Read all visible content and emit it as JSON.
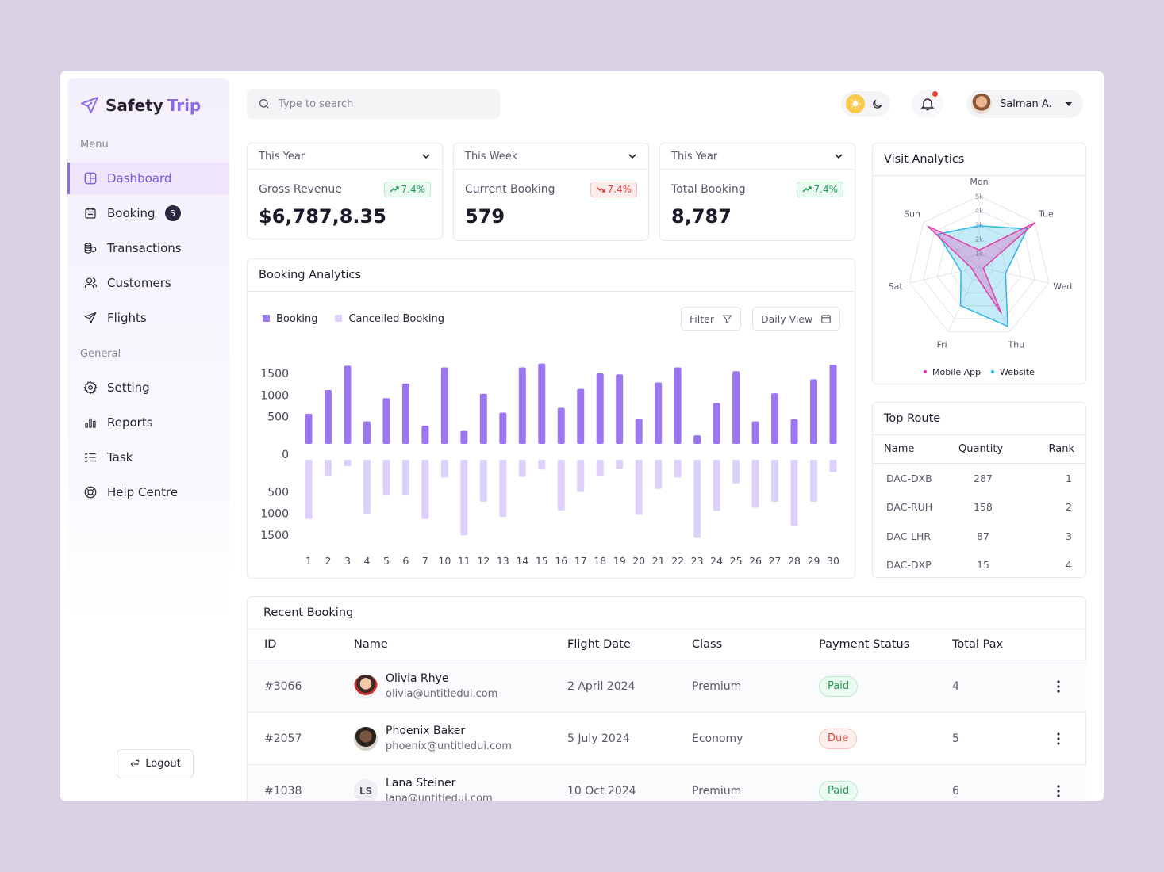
{
  "brand": {
    "name_part1": "Safety",
    "name_part2": "Trip"
  },
  "sidebar": {
    "menu_label": "Menu",
    "general_label": "General",
    "menu_items": [
      {
        "label": "Dashboard",
        "icon": "dashboard-icon",
        "active": true
      },
      {
        "label": "Booking",
        "icon": "calendar-icon",
        "badge": "5"
      },
      {
        "label": "Transactions",
        "icon": "coins-icon"
      },
      {
        "label": "Customers",
        "icon": "users-icon"
      },
      {
        "label": "Flights",
        "icon": "plane-icon"
      }
    ],
    "general_items": [
      {
        "label": "Setting",
        "icon": "gear-icon"
      },
      {
        "label": "Reports",
        "icon": "bar-chart-icon"
      },
      {
        "label": "Task",
        "icon": "task-list-icon"
      },
      {
        "label": "Help Centre",
        "icon": "lifebuoy-icon"
      }
    ],
    "logout_label": "Logout"
  },
  "topbar": {
    "search_placeholder": "Type to search",
    "user_name": "Salman A."
  },
  "stats": [
    {
      "period": "This Year",
      "label": "Gross Revenue",
      "value": "$6,787,8.35",
      "change": "7.4%",
      "trend": "up"
    },
    {
      "period": "This Week",
      "label": "Current Booking",
      "value": "579",
      "change": "7.4%",
      "trend": "down"
    },
    {
      "period": "This Year",
      "label": "Total Booking",
      "value": "8,787",
      "change": "7.4%",
      "trend": "up"
    }
  ],
  "booking_analytics": {
    "title": "Booking Analytics",
    "legend_booking": "Booking",
    "legend_cancelled": "Cancelled Booking",
    "filter_label": "Filter",
    "view_label": "Daily View",
    "colors": {
      "booking": "#9b76ee",
      "cancelled": "#ddd0fa"
    }
  },
  "chart_data": [
    {
      "type": "bar",
      "title": "Booking Analytics",
      "categories": [
        "1",
        "2",
        "3",
        "4",
        "5",
        "6",
        "7",
        "10",
        "11",
        "12",
        "13",
        "14",
        "15",
        "16",
        "17",
        "18",
        "19",
        "20",
        "21",
        "22",
        "23",
        "24",
        "25",
        "26",
        "27",
        "28",
        "29",
        "30"
      ],
      "series": [
        {
          "name": "Booking",
          "values": [
            560,
            1000,
            1450,
            420,
            850,
            1120,
            340,
            1420,
            240,
            930,
            580,
            1420,
            1490,
            670,
            1020,
            1310,
            1290,
            470,
            1140,
            1420,
            160,
            760,
            1350,
            420,
            940,
            460,
            1200,
            1470
          ]
        },
        {
          "name": "Cancelled Booking",
          "values": [
            1100,
            300,
            120,
            1000,
            650,
            650,
            1100,
            330,
            1400,
            780,
            1060,
            320,
            180,
            940,
            600,
            300,
            170,
            1020,
            540,
            330,
            1450,
            950,
            440,
            890,
            780,
            1230,
            780,
            230
          ]
        }
      ],
      "yticks": [
        "1500",
        "1000",
        "500",
        "0",
        "500",
        "1000",
        "1500"
      ],
      "ylim": [
        -1500,
        1500
      ]
    },
    {
      "type": "radar",
      "title": "Visit Analytics",
      "axes": [
        "Mon",
        "Tue",
        "Wed",
        "Thu",
        "Fri",
        "Sat",
        "Sun"
      ],
      "rings": [
        "5k",
        "4k",
        "3k",
        "2k",
        "1k"
      ],
      "max": 5000,
      "series": [
        {
          "name": "Mobile App",
          "color": "#e23fae",
          "values": [
            1200,
            5000,
            300,
            3600,
            600,
            500,
            4600
          ]
        },
        {
          "name": "Website",
          "color": "#2fb6e8",
          "values": [
            2900,
            4300,
            1900,
            4600,
            3000,
            1300,
            3700
          ]
        }
      ]
    }
  ],
  "visit_analytics": {
    "title": "Visit Analytics",
    "legend": [
      "Mobile App",
      "Website"
    ]
  },
  "top_route": {
    "title": "Top Route",
    "columns": [
      "Name",
      "Quantity",
      "Rank"
    ],
    "rows": [
      {
        "name": "DAC-DXB",
        "qty": "287",
        "rank": "1"
      },
      {
        "name": "DAC-RUH",
        "qty": "158",
        "rank": "2"
      },
      {
        "name": "DAC-LHR",
        "qty": "87",
        "rank": "3"
      },
      {
        "name": "DAC-DXP",
        "qty": "15",
        "rank": "4"
      }
    ]
  },
  "recent_booking": {
    "title": "Recent Booking",
    "columns": {
      "id": "ID",
      "name": "Name",
      "date": "Flight Date",
      "class": "Class",
      "status": "Payment Status",
      "pax": "Total Pax"
    },
    "rows": [
      {
        "id": "#3066",
        "name": "Olivia Rhye",
        "email": "olivia@untitledui.com",
        "date": "2 April 2024",
        "class": "Premium",
        "status": "Paid",
        "pax": "4",
        "initials": ""
      },
      {
        "id": "#2057",
        "name": "Phoenix Baker",
        "email": "phoenix@untitledui.com",
        "date": "5 July 2024",
        "class": "Economy",
        "status": "Due",
        "pax": "5",
        "initials": ""
      },
      {
        "id": "#1038",
        "name": "Lana Steiner",
        "email": "lana@untitledui.com",
        "date": "10 Oct 2024",
        "class": "Premium",
        "status": "Paid",
        "pax": "6",
        "initials": "LS"
      }
    ]
  }
}
